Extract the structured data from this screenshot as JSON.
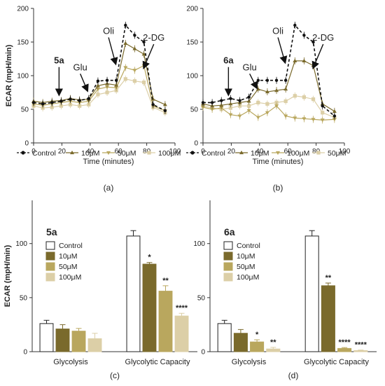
{
  "colors": {
    "control": "#111111",
    "c10": "#7a6a2c",
    "c50": "#b9a75e",
    "c100": "#dccfa7",
    "axis": "#333333"
  },
  "chart_data": [
    {
      "panel_label": "(a)",
      "type": "line",
      "compound_label": "5a",
      "xlabel": "Time (minutes)",
      "ylabel": "ECAR (mpH/min)",
      "xlim": [
        0,
        100
      ],
      "ylim": [
        0,
        200
      ],
      "xticks": [
        "0",
        "20",
        "40",
        "60",
        "80",
        "100"
      ],
      "yticks": [
        "0",
        "50",
        "100",
        "150",
        "200"
      ],
      "annotations": [
        {
          "text": "5a",
          "bold": true,
          "x": 18,
          "y": 118,
          "arrow_to": [
            18,
            72
          ]
        },
        {
          "text": "Glu",
          "x": 33,
          "y": 108,
          "arrow_to": [
            38,
            78
          ]
        },
        {
          "text": "Oli",
          "x": 53,
          "y": 162,
          "arrow_to": [
            58,
            118
          ]
        },
        {
          "text": "2-DG",
          "x": 85,
          "y": 152,
          "arrow_to": [
            78,
            112
          ]
        }
      ],
      "x": [
        0,
        6.5,
        13,
        19.5,
        26,
        32.5,
        39,
        45.5,
        52,
        58.5,
        65,
        71.5,
        78,
        84.5,
        93
      ],
      "series": [
        {
          "name": "Control",
          "key": "control",
          "marker": "circle",
          "dash": true,
          "values": [
            60,
            58,
            60,
            62,
            65,
            63,
            66,
            92,
            93,
            93,
            175,
            160,
            150,
            57,
            48
          ]
        },
        {
          "name": "10μM",
          "key": "c10",
          "marker": "triangle-up",
          "values": [
            62,
            60,
            62,
            63,
            66,
            64,
            65,
            85,
            88,
            86,
            148,
            140,
            132,
            65,
            57
          ]
        },
        {
          "name": "50μM",
          "key": "c50",
          "marker": "triangle-down",
          "values": [
            58,
            56,
            58,
            60,
            62,
            60,
            62,
            80,
            83,
            82,
            112,
            108,
            115,
            55,
            48
          ]
        },
        {
          "name": "100μM",
          "key": "c100",
          "marker": "square",
          "values": [
            55,
            52,
            53,
            55,
            57,
            55,
            57,
            72,
            75,
            78,
            95,
            92,
            90,
            53,
            45
          ]
        }
      ],
      "legend": "bottom"
    },
    {
      "panel_label": "(b)",
      "type": "line",
      "compound_label": "6a",
      "xlabel": "Time (minutes)",
      "ylabel": "",
      "xlim": [
        0,
        100
      ],
      "ylim": [
        0,
        200
      ],
      "xticks": [
        "0",
        "20",
        "40",
        "60",
        "80",
        "100"
      ],
      "yticks": [
        "0",
        "50",
        "100",
        "150",
        "200"
      ],
      "annotations": [
        {
          "text": "6a",
          "bold": true,
          "x": 18,
          "y": 118,
          "arrow_to": [
            18,
            72
          ]
        },
        {
          "text": "Glu",
          "x": 33,
          "y": 108,
          "arrow_to": [
            38,
            82
          ]
        },
        {
          "text": "Oli",
          "x": 53,
          "y": 162,
          "arrow_to": [
            58,
            120
          ]
        },
        {
          "text": "2-DG",
          "x": 85,
          "y": 152,
          "arrow_to": [
            78,
            112
          ]
        }
      ],
      "x": [
        0,
        6.5,
        13,
        19.5,
        26,
        32.5,
        39,
        45.5,
        52,
        58.5,
        65,
        71.5,
        78,
        84.5,
        93
      ],
      "series": [
        {
          "name": "Control",
          "key": "control",
          "marker": "circle",
          "dash": true,
          "values": [
            60,
            60,
            63,
            66,
            63,
            68,
            93,
            93,
            93,
            93,
            175,
            160,
            150,
            55,
            40
          ]
        },
        {
          "name": "10μM",
          "key": "c10",
          "marker": "triangle-up",
          "values": [
            58,
            55,
            56,
            58,
            60,
            62,
            80,
            76,
            78,
            80,
            122,
            122,
            115,
            58,
            47
          ]
        },
        {
          "name": "100μM",
          "key": "c50",
          "marker": "triangle-down",
          "values": [
            53,
            50,
            52,
            42,
            40,
            48,
            38,
            45,
            55,
            40,
            37,
            36,
            35,
            34,
            35
          ]
        },
        {
          "name": "50μM",
          "key": "c100",
          "marker": "square",
          "values": [
            55,
            52,
            50,
            52,
            55,
            55,
            60,
            58,
            60,
            62,
            70,
            68,
            65,
            45,
            38
          ]
        }
      ],
      "legend": "bottom"
    },
    {
      "panel_label": "(c)",
      "type": "bar",
      "compound_label": "5a",
      "ylabel": "ECAR (mpH/min)",
      "ylim": [
        0,
        140
      ],
      "yticks": [
        "0",
        "50",
        "100"
      ],
      "categories": [
        "Glycolysis",
        "Glycolytic Capacity"
      ],
      "series": [
        {
          "name": "Control",
          "key": "control",
          "values": [
            26,
            107
          ],
          "errors": [
            3,
            5
          ],
          "sig": [
            "",
            ""
          ]
        },
        {
          "name": "10μM",
          "key": "c10",
          "values": [
            21,
            81
          ],
          "errors": [
            4,
            1.5
          ],
          "sig": [
            "",
            "*"
          ]
        },
        {
          "name": "50μM",
          "key": "c50",
          "values": [
            19,
            56
          ],
          "errors": [
            2.5,
            5
          ],
          "sig": [
            "",
            "**"
          ]
        },
        {
          "name": "100μM",
          "key": "c100",
          "values": [
            12,
            33
          ],
          "errors": [
            5,
            2.5
          ],
          "sig": [
            "",
            "****"
          ]
        }
      ],
      "legend": "top-left"
    },
    {
      "panel_label": "(d)",
      "type": "bar",
      "compound_label": "6a",
      "ylabel": "",
      "ylim": [
        0,
        140
      ],
      "yticks": [
        "0",
        "50",
        "100"
      ],
      "categories": [
        "Glycolysis",
        "Glycolytic Capacity"
      ],
      "series": [
        {
          "name": "Control",
          "key": "control",
          "values": [
            26,
            107
          ],
          "errors": [
            3,
            5
          ],
          "sig": [
            "",
            ""
          ]
        },
        {
          "name": "10μM",
          "key": "c10",
          "values": [
            17,
            61
          ],
          "errors": [
            3.5,
            2.5
          ],
          "sig": [
            "",
            "**"
          ]
        },
        {
          "name": "50μM",
          "key": "c50",
          "values": [
            9,
            3
          ],
          "errors": [
            2,
            0.8
          ],
          "sig": [
            "*",
            "****"
          ]
        },
        {
          "name": "100μM",
          "key": "c100",
          "values": [
            2.5,
            1
          ],
          "errors": [
            1.5,
            0.5
          ],
          "sig": [
            "**",
            "****"
          ]
        }
      ],
      "legend": "top-left"
    }
  ]
}
